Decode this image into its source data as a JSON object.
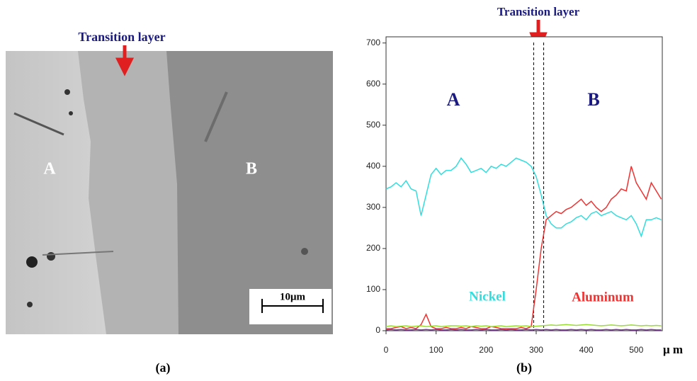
{
  "micrograph": {
    "title": "Transition layer",
    "label_a": "A",
    "label_b": "B",
    "scale_bar": "10μm",
    "caption": "(a)"
  },
  "chart_data": {
    "type": "line",
    "title": "Transition layer",
    "caption": "(b)",
    "x_label": "μ m",
    "region_a": "A",
    "region_b": "B",
    "transition_x": [
      295,
      315
    ],
    "x": [
      0,
      10,
      20,
      30,
      40,
      50,
      60,
      70,
      80,
      90,
      100,
      110,
      120,
      130,
      140,
      150,
      160,
      170,
      180,
      190,
      200,
      210,
      220,
      230,
      240,
      250,
      260,
      270,
      280,
      290,
      300,
      310,
      320,
      330,
      340,
      350,
      360,
      370,
      380,
      390,
      400,
      410,
      420,
      430,
      440,
      450,
      460,
      470,
      480,
      490,
      500,
      510,
      520,
      530,
      540,
      550
    ],
    "xlim": [
      0,
      552
    ],
    "xticks": [
      0,
      100,
      200,
      300,
      400,
      500
    ],
    "ylim": [
      0,
      715
    ],
    "yticks": [
      0,
      100,
      200,
      300,
      400,
      500,
      600,
      700
    ],
    "series": [
      {
        "name": "Nickel",
        "color": "#33dddd",
        "values": [
          345,
          350,
          360,
          350,
          365,
          345,
          340,
          280,
          330,
          380,
          395,
          380,
          390,
          390,
          400,
          420,
          405,
          385,
          390,
          395,
          385,
          400,
          395,
          405,
          400,
          410,
          420,
          415,
          410,
          400,
          375,
          330,
          280,
          260,
          250,
          250,
          260,
          265,
          275,
          280,
          270,
          285,
          290,
          280,
          285,
          290,
          280,
          275,
          270,
          280,
          260,
          230,
          270,
          270,
          275,
          270
        ]
      },
      {
        "name": "Aluminum",
        "color": "#ee3333",
        "values": [
          5,
          5,
          8,
          10,
          5,
          8,
          5,
          15,
          40,
          10,
          5,
          5,
          8,
          5,
          5,
          8,
          5,
          10,
          8,
          5,
          5,
          10,
          8,
          5,
          5,
          5,
          5,
          8,
          5,
          10,
          100,
          200,
          270,
          280,
          290,
          285,
          295,
          300,
          310,
          320,
          305,
          315,
          300,
          290,
          300,
          320,
          330,
          345,
          340,
          400,
          360,
          340,
          320,
          360,
          340,
          320
        ]
      },
      {
        "color": "#99dd33",
        "values": [
          10,
          12,
          10,
          11,
          12,
          10,
          11,
          12,
          10,
          11,
          12,
          10,
          11,
          12,
          12,
          11,
          12,
          10,
          12,
          11,
          12,
          10,
          11,
          12,
          10,
          11,
          12,
          11,
          12,
          10,
          11,
          12,
          13,
          14,
          13,
          14,
          15,
          14,
          13,
          14,
          15,
          14,
          13,
          12,
          13,
          14,
          13,
          12,
          13,
          14,
          13,
          12,
          13,
          12,
          13,
          12
        ]
      },
      {
        "color": "#8833aa",
        "values": [
          2,
          3,
          2,
          3,
          2,
          2,
          3,
          2,
          3,
          2,
          3,
          2,
          2,
          3,
          2,
          3,
          2,
          2,
          3,
          2,
          3,
          2,
          2,
          3,
          2,
          3,
          2,
          2,
          3,
          2,
          3,
          2,
          3,
          2,
          3,
          2,
          2,
          3,
          2,
          3,
          2,
          3,
          2,
          2,
          3,
          2,
          3,
          2,
          3,
          2,
          2,
          3,
          2,
          3,
          2,
          2
        ]
      }
    ]
  }
}
